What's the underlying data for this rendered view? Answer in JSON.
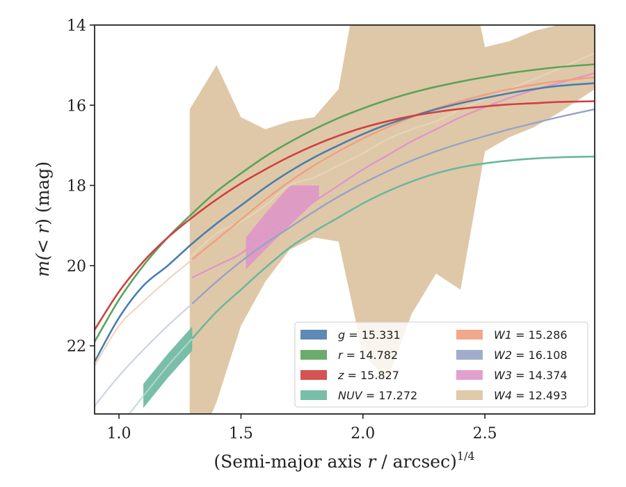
{
  "chart_data": {
    "type": "line",
    "xlabel_prefix": "(Semi-major axis ",
    "xlabel_var": "r",
    "xlabel_mid": " / arcsec)",
    "xlabel_exp": "1/4",
    "ylabel_prefix": "m(",
    "ylabel_lt": "< ",
    "ylabel_var": "r",
    "ylabel_suffix": ") (mag)",
    "xlim": [
      0.9,
      2.95
    ],
    "ylim": [
      23.7,
      14.0
    ],
    "y_inverted": true,
    "x_ticks": [
      1.0,
      1.5,
      2.0,
      2.5
    ],
    "x_tick_labels": [
      "1.0",
      "1.5",
      "2.0",
      "2.5"
    ],
    "y_ticks": [
      14,
      16,
      18,
      20,
      22
    ],
    "y_tick_labels": [
      "14",
      "16",
      "18",
      "20",
      "22"
    ],
    "legend_position": "lower-right",
    "series": [
      {
        "name": "g",
        "legend_var": "g",
        "legend_value": "15.331",
        "color": "#4c7dab",
        "light": "#a9b9d6",
        "x": [
          0.9,
          1.0,
          1.1,
          1.2,
          1.3,
          1.4,
          1.5,
          1.6,
          1.7,
          1.8,
          1.9,
          2.0,
          2.1,
          2.2,
          2.3,
          2.4,
          2.5,
          2.6,
          2.7,
          2.8,
          2.95
        ],
        "y": [
          22.4,
          21.3,
          20.5,
          20.0,
          19.45,
          18.95,
          18.5,
          18.05,
          17.65,
          17.3,
          17.0,
          16.72,
          16.48,
          16.28,
          16.1,
          15.95,
          15.82,
          15.7,
          15.6,
          15.52,
          15.45
        ]
      },
      {
        "name": "r",
        "legend_var": "r",
        "legend_value": "14.782",
        "color": "#5aa35a",
        "light": "#b3d6a8",
        "x": [
          0.9,
          1.0,
          1.1,
          1.2,
          1.3,
          1.4,
          1.5,
          1.6,
          1.7,
          1.8,
          1.9,
          2.0,
          2.1,
          2.2,
          2.3,
          2.4,
          2.5,
          2.6,
          2.7,
          2.8,
          2.95
        ],
        "y": [
          21.9,
          20.85,
          20.0,
          19.3,
          18.7,
          18.15,
          17.7,
          17.28,
          16.92,
          16.6,
          16.32,
          16.08,
          15.87,
          15.69,
          15.54,
          15.41,
          15.3,
          15.2,
          15.12,
          15.05,
          14.98
        ]
      },
      {
        "name": "z",
        "legend_var": "z",
        "legend_value": "15.827",
        "color": "#d04040",
        "light": "#e8a0a0",
        "x": [
          0.9,
          1.0,
          1.1,
          1.2,
          1.3,
          1.4,
          1.5,
          1.6,
          1.7,
          1.8,
          1.9,
          2.0,
          2.1,
          2.2,
          2.3,
          2.4,
          2.5,
          2.6,
          2.7,
          2.8,
          2.95
        ],
        "y": [
          21.6,
          20.65,
          19.9,
          19.3,
          18.8,
          18.35,
          17.95,
          17.6,
          17.28,
          17.0,
          16.76,
          16.56,
          16.4,
          16.27,
          16.17,
          16.09,
          16.03,
          15.98,
          15.95,
          15.92,
          15.9
        ]
      },
      {
        "name": "NUV",
        "legend_var": "NUV",
        "legend_value": "17.272",
        "color": "#6ab79f",
        "light": "#b6dccf",
        "x": [
          0.9,
          1.0,
          1.1,
          1.2,
          1.3,
          1.4,
          1.5,
          1.6,
          1.7,
          1.8,
          1.9,
          2.0,
          2.1,
          2.2,
          2.3,
          2.4,
          2.5,
          2.6,
          2.7,
          2.8,
          2.95
        ],
        "y": [
          24.5,
          24.0,
          23.25,
          22.5,
          21.82,
          21.15,
          20.6,
          20.05,
          19.55,
          19.15,
          18.8,
          18.45,
          18.15,
          17.9,
          17.7,
          17.55,
          17.45,
          17.38,
          17.33,
          17.3,
          17.28
        ]
      },
      {
        "name": "W1",
        "legend_var": "W1",
        "legend_value": "15.286",
        "color": "#ef9f80",
        "light": "#f3cbb6",
        "x": [
          0.9,
          1.0,
          1.1,
          1.2,
          1.3,
          1.4,
          1.5,
          1.6,
          1.7,
          1.8,
          1.9,
          2.0,
          2.1,
          2.2,
          2.3,
          2.4,
          2.5,
          2.6,
          2.7,
          2.8,
          2.95
        ],
        "y": [
          22.5,
          21.5,
          20.9,
          20.35,
          19.85,
          19.35,
          18.85,
          18.35,
          17.9,
          17.5,
          17.15,
          16.83,
          16.55,
          16.3,
          16.08,
          15.9,
          15.74,
          15.6,
          15.49,
          15.4,
          15.3
        ]
      },
      {
        "name": "W2",
        "legend_var": "W2",
        "legend_value": "16.108",
        "color": "#97a3c6",
        "light": "#c3cbe0",
        "x": [
          0.9,
          1.0,
          1.1,
          1.2,
          1.3,
          1.4,
          1.5,
          1.6,
          1.7,
          1.8,
          1.9,
          2.0,
          2.1,
          2.2,
          2.3,
          2.4,
          2.5,
          2.6,
          2.7,
          2.8,
          2.95
        ],
        "y": [
          23.5,
          22.75,
          22.1,
          21.5,
          20.95,
          20.4,
          19.9,
          19.45,
          19.05,
          18.65,
          18.28,
          17.95,
          17.65,
          17.38,
          17.15,
          16.95,
          16.77,
          16.6,
          16.45,
          16.3,
          16.1
        ]
      },
      {
        "name": "W3",
        "legend_var": "W3",
        "legend_value": "14.374",
        "color": "#de97c9",
        "light": "#ecc4df",
        "x": [
          1.3,
          1.4,
          1.5,
          1.6,
          1.7,
          1.8,
          1.9,
          2.0,
          2.1,
          2.2,
          2.3,
          2.4,
          2.5,
          2.6,
          2.7,
          2.8,
          2.95
        ],
        "y": [
          20.3,
          20.0,
          19.7,
          19.2,
          18.8,
          18.4,
          18.0,
          17.6,
          17.25,
          16.9,
          16.6,
          16.3,
          16.05,
          15.82,
          15.62,
          15.45,
          15.2
        ]
      },
      {
        "name": "W4",
        "legend_var": "W4",
        "legend_value": "12.493",
        "color": "#dcc3a0",
        "light": "#e8d6bd",
        "x": [
          1.29,
          1.4,
          1.5,
          1.6,
          1.7,
          1.8,
          1.9,
          2.0,
          2.1,
          2.2,
          2.3,
          2.4,
          2.5,
          2.6,
          2.7,
          2.8,
          2.95
        ],
        "y": [
          19.8,
          19.2,
          18.9,
          18.5,
          18.0,
          17.8,
          17.5,
          17.2,
          16.85,
          16.6,
          16.4,
          16.1,
          15.85,
          15.6,
          15.35,
          15.1,
          14.7
        ]
      }
    ]
  }
}
